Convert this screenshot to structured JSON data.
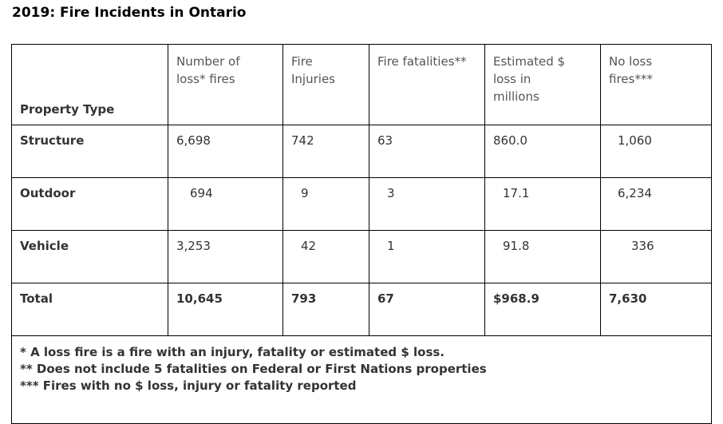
{
  "title": "2019: Fire Incidents in Ontario",
  "headers": [
    "Property Type",
    "Number of loss* fires",
    "Fire Injuries",
    "Fire fatalities**",
    "Estimated $ loss in millions",
    "No loss fires***"
  ],
  "rows": [
    [
      "Structure",
      "6,698",
      "742",
      "63",
      "860.0",
      "1,060"
    ],
    [
      "Outdoor",
      "694",
      "9",
      "3",
      "17.1",
      "6,234"
    ],
    [
      "Vehicle",
      "3,253",
      "42",
      "1",
      "91.8",
      "336"
    ],
    [
      "Total",
      "10,645",
      "793",
      "67",
      "$968.9",
      "7,630"
    ]
  ],
  "notes": [
    "* A loss fire is a fire with an injury, fatality or estimated $ loss.",
    "** Does not include 5 fatalities on Federal or First Nations properties",
    "*** Fires with no $ loss, injury or fatality reported"
  ]
}
